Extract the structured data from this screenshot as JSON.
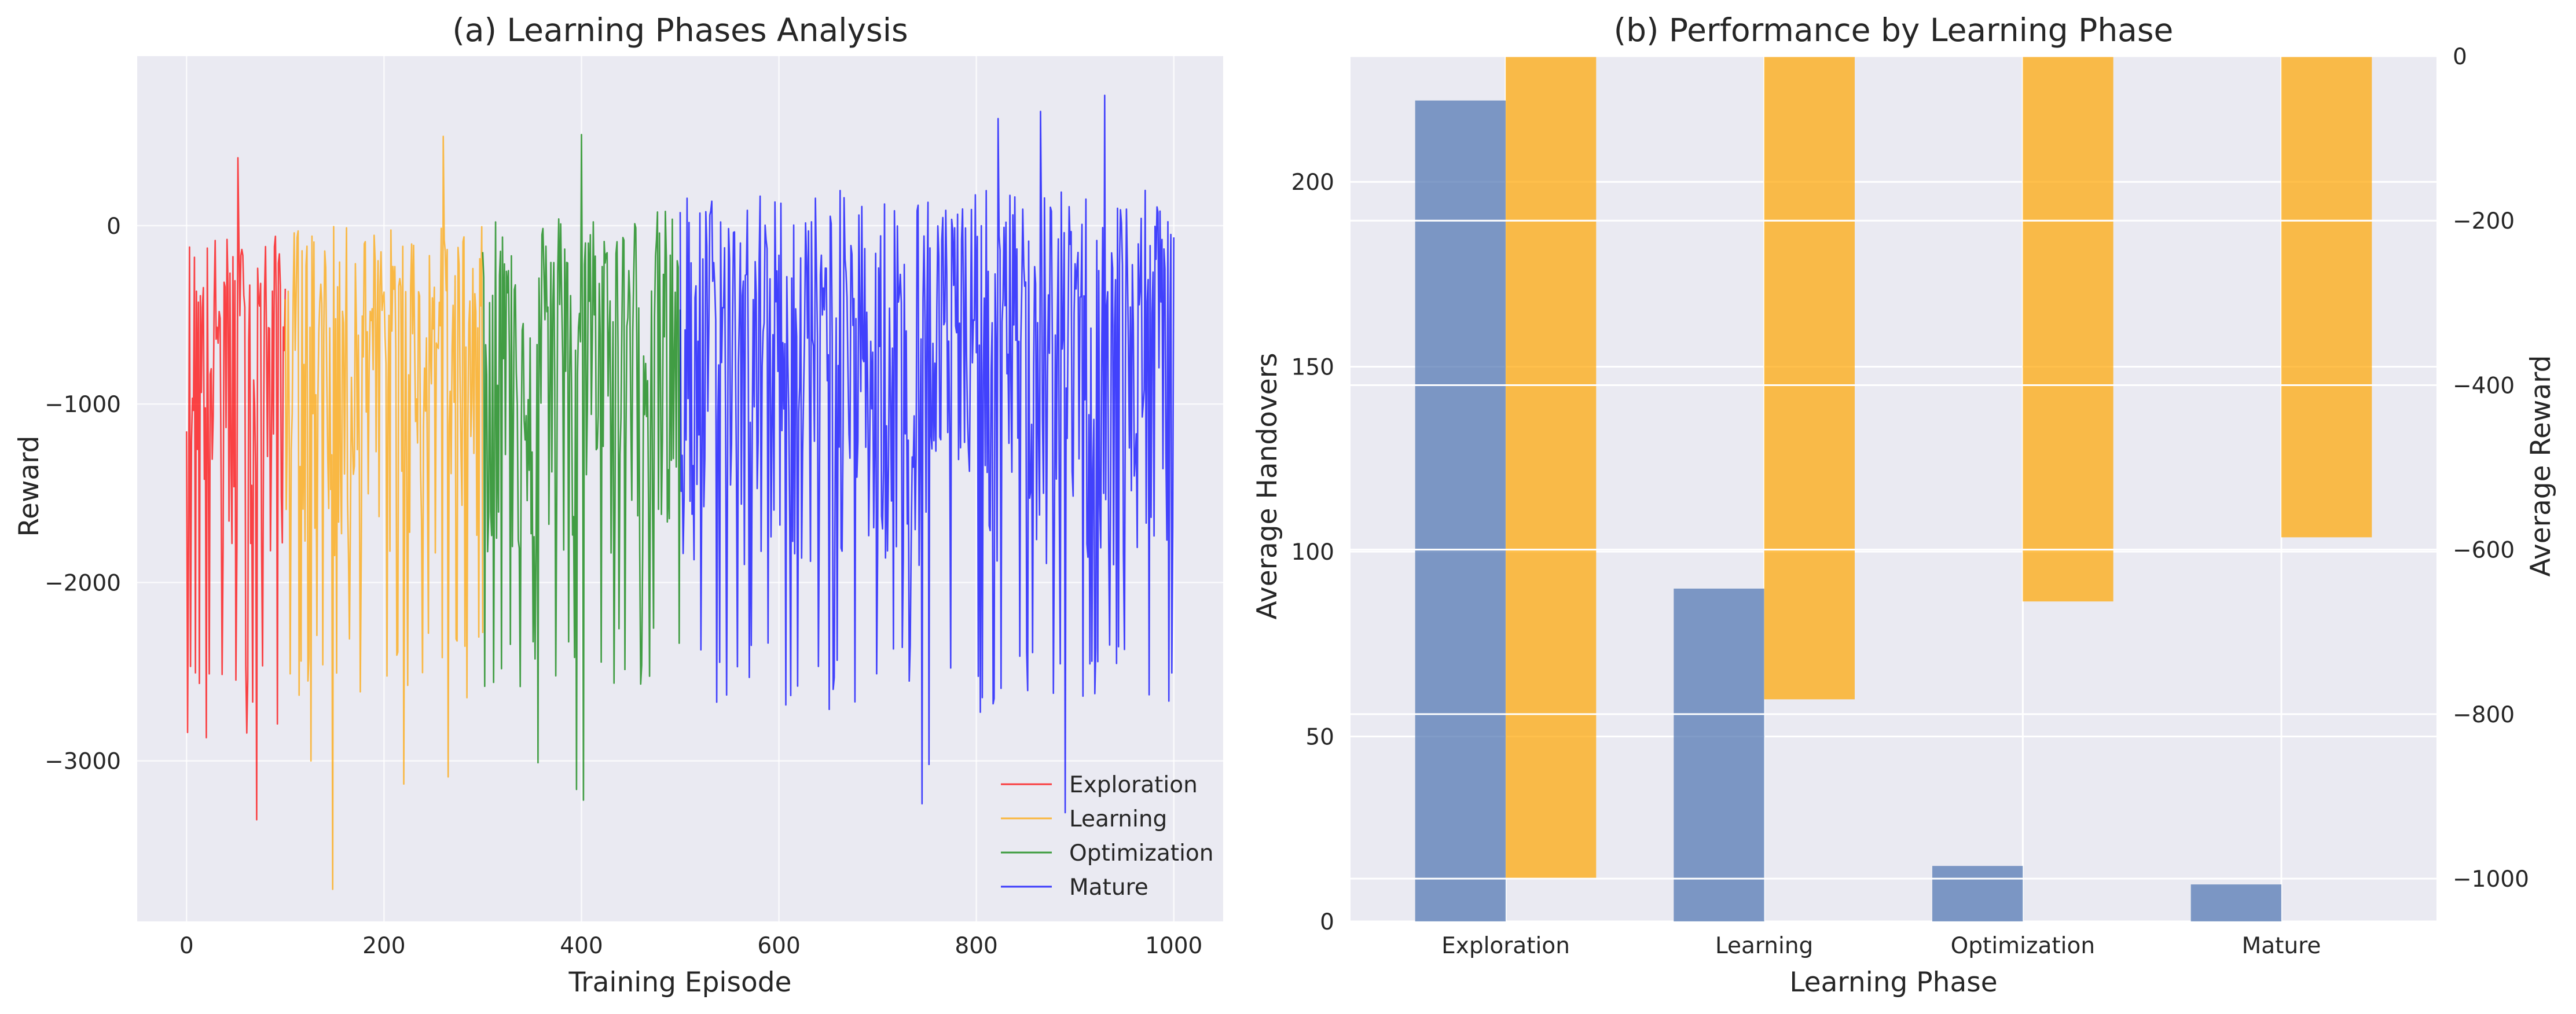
{
  "colors": {
    "axes_bg": "#eaeaf2",
    "grid": "#ffffff",
    "exploration": "#ff0000",
    "learning": "#ffa500",
    "optimization": "#008000",
    "mature": "#0000ff",
    "handovers_bar": "#4c72b0",
    "reward_bar": "#ffa500",
    "ylabel_handovers": "#0000ff",
    "ylabel_reward": "#ffa500"
  },
  "chart_data": [
    {
      "type": "line",
      "title": "(a) Learning Phases Analysis",
      "xlabel": "Training Episode",
      "ylabel": "Reward",
      "xlim": [
        -50,
        1050
      ],
      "ylim": [
        -3900,
        950
      ],
      "xticks": [
        0,
        200,
        400,
        600,
        800,
        1000
      ],
      "yticks": [
        -3000,
        -2000,
        -1000,
        0
      ],
      "grid": true,
      "legend_position": "lower-right",
      "series": [
        {
          "name": "Exploration",
          "color_key": "exploration",
          "range": [
            0,
            100
          ],
          "amplitude_low": 2200,
          "amplitude_high": 600
        },
        {
          "name": "Learning",
          "color_key": "learning",
          "range": [
            100,
            300
          ],
          "amplitude_low": 2000,
          "amplitude_high": 650
        },
        {
          "name": "Optimization",
          "color_key": "optimization",
          "range": [
            300,
            500
          ],
          "amplitude_low": 2000,
          "amplitude_high": 750
        },
        {
          "name": "Mature",
          "color_key": "mature",
          "range": [
            500,
            1000
          ],
          "amplitude_low": 2100,
          "amplitude_high": 850
        }
      ],
      "center": -650,
      "extremes": [
        {
          "x": 52,
          "y": -3420
        },
        {
          "x": 71,
          "y": -3330
        },
        {
          "x": 20,
          "y": -2870
        },
        {
          "x": 148,
          "y": -3720
        },
        {
          "x": 126,
          "y": -3000
        },
        {
          "x": 220,
          "y": -3130
        },
        {
          "x": 265,
          "y": -3090
        },
        {
          "x": 395,
          "y": -3160
        },
        {
          "x": 402,
          "y": -3220
        },
        {
          "x": 356,
          "y": -3010
        },
        {
          "x": 745,
          "y": -3240
        },
        {
          "x": 890,
          "y": -3290
        },
        {
          "x": 752,
          "y": -3020
        },
        {
          "x": 930,
          "y": 730
        },
        {
          "x": 865,
          "y": 640
        },
        {
          "x": 822,
          "y": 600
        },
        {
          "x": 260,
          "y": 500
        },
        {
          "x": 400,
          "y": 510
        },
        {
          "x": 52,
          "y": 380
        }
      ]
    },
    {
      "type": "bar",
      "title": "(b) Performance by Learning Phase",
      "xlabel": "Learning Phase",
      "ylabel": "Average Handovers",
      "ylabel_right": "Average Reward",
      "categories": [
        "Exploration",
        "Learning",
        "Optimization",
        "Mature"
      ],
      "ylim": [
        0,
        234
      ],
      "yticks": [
        0,
        50,
        100,
        150,
        200
      ],
      "ylim_right": [
        -1052,
        0
      ],
      "yticks_right": [
        -1000,
        -800,
        -600,
        -400,
        -200,
        0
      ],
      "series": [
        {
          "name": "Average Handovers",
          "axis": "left",
          "values": [
            222,
            90,
            15,
            10
          ]
        },
        {
          "name": "Average Reward",
          "axis": "right",
          "values": [
            -1000,
            -782,
            -663,
            -585
          ]
        }
      ],
      "grid": true
    }
  ]
}
